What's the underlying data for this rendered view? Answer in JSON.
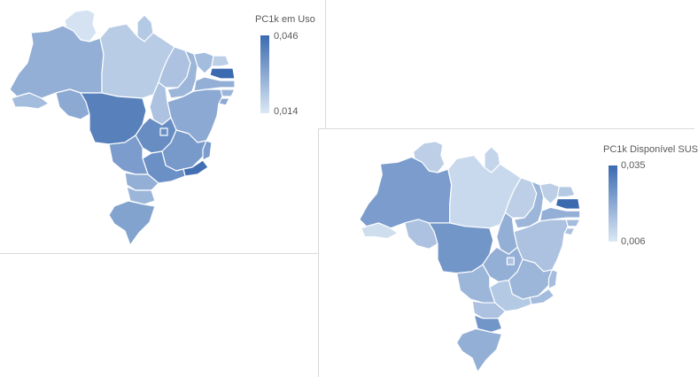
{
  "maps": [
    {
      "legend": {
        "title": "PC1k em Uso",
        "max": "0,046",
        "min": "0,014"
      },
      "colors": {
        "high": "#3b6ab0",
        "low": "#dce8f5"
      },
      "regions": [
        {
          "id": "RR",
          "level": 0.05
        },
        {
          "id": "AP",
          "level": 0.25
        },
        {
          "id": "AM",
          "level": 0.45
        },
        {
          "id": "PA",
          "level": 0.22
        },
        {
          "id": "AC",
          "level": 0.35
        },
        {
          "id": "RO",
          "level": 0.5
        },
        {
          "id": "MT",
          "level": 0.82
        },
        {
          "id": "TO",
          "level": 0.3
        },
        {
          "id": "MA",
          "level": 0.3
        },
        {
          "id": "PI",
          "level": 0.4
        },
        {
          "id": "CE",
          "level": 0.35
        },
        {
          "id": "RN",
          "level": 0.2
        },
        {
          "id": "PB",
          "level": 1.0
        },
        {
          "id": "PE",
          "level": 0.45
        },
        {
          "id": "AL",
          "level": 0.4
        },
        {
          "id": "SE",
          "level": 0.5
        },
        {
          "id": "BA",
          "level": 0.5
        },
        {
          "id": "GO",
          "level": 0.72
        },
        {
          "id": "DF",
          "level": 0.7
        },
        {
          "id": "MG",
          "level": 0.62
        },
        {
          "id": "ES",
          "level": 0.6
        },
        {
          "id": "RJ",
          "level": 0.95
        },
        {
          "id": "SP",
          "level": 0.7
        },
        {
          "id": "MS",
          "level": 0.6
        },
        {
          "id": "PR",
          "level": 0.45
        },
        {
          "id": "SC",
          "level": 0.4
        },
        {
          "id": "RS",
          "level": 0.55
        }
      ]
    },
    {
      "legend": {
        "title": "PC1k Disponível SUS",
        "max": "0,035",
        "min": "0,006"
      },
      "colors": {
        "high": "#3b6ab0",
        "low": "#dce8f5"
      },
      "regions": [
        {
          "id": "RR",
          "level": 0.2
        },
        {
          "id": "AP",
          "level": 0.15
        },
        {
          "id": "AM",
          "level": 0.6
        },
        {
          "id": "PA",
          "level": 0.12
        },
        {
          "id": "AC",
          "level": 0.08
        },
        {
          "id": "RO",
          "level": 0.3
        },
        {
          "id": "MT",
          "level": 0.65
        },
        {
          "id": "TO",
          "level": 0.45
        },
        {
          "id": "MA",
          "level": 0.2
        },
        {
          "id": "PI",
          "level": 0.4
        },
        {
          "id": "CE",
          "level": 0.2
        },
        {
          "id": "RN",
          "level": 0.25
        },
        {
          "id": "PB",
          "level": 1.0
        },
        {
          "id": "PE",
          "level": 0.45
        },
        {
          "id": "AL",
          "level": 0.35
        },
        {
          "id": "SE",
          "level": 0.3
        },
        {
          "id": "BA",
          "level": 0.3
        },
        {
          "id": "GO",
          "level": 0.45
        },
        {
          "id": "DF",
          "level": 0.3
        },
        {
          "id": "MG",
          "level": 0.4
        },
        {
          "id": "ES",
          "level": 0.35
        },
        {
          "id": "RJ",
          "level": 0.35
        },
        {
          "id": "SP",
          "level": 0.25
        },
        {
          "id": "MS",
          "level": 0.4
        },
        {
          "id": "PR",
          "level": 0.3
        },
        {
          "id": "SC",
          "level": 0.65
        },
        {
          "id": "RS",
          "level": 0.45
        }
      ]
    }
  ]
}
